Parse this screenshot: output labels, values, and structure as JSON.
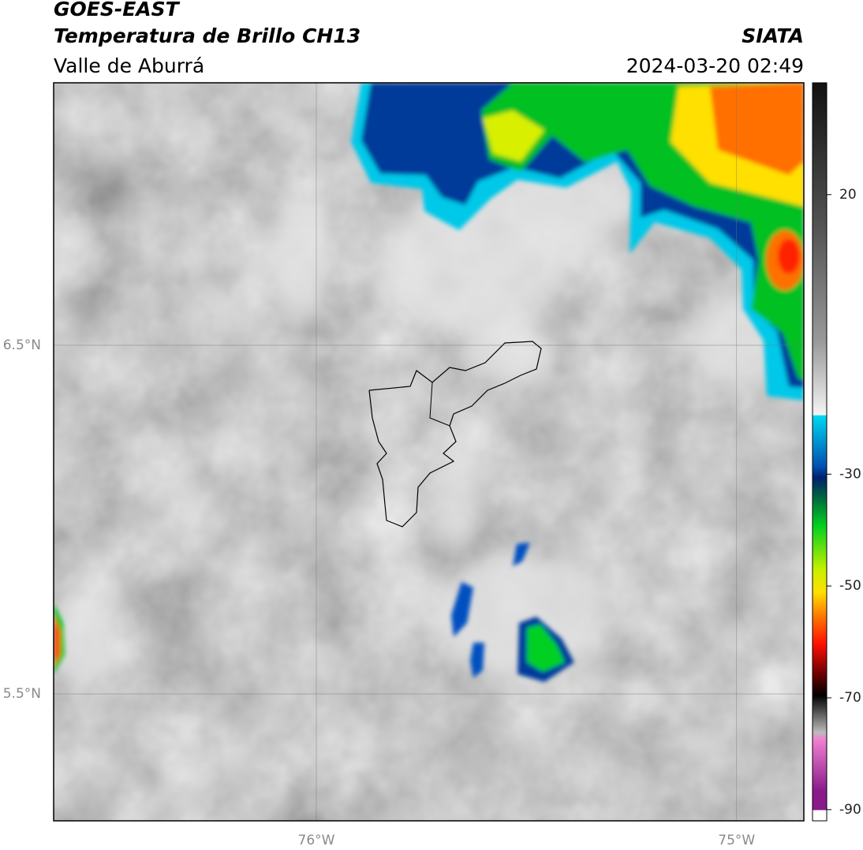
{
  "header": {
    "title": "GOES-EAST",
    "subtitle": "Temperatura de Brillo CH13",
    "region": "Valle de Aburrá",
    "source": "SIATA",
    "datetime": "2024-03-20 02:49"
  },
  "map": {
    "xlim": [
      -76.625,
      -74.84
    ],
    "ylim": [
      5.136,
      7.253
    ],
    "xticks": [
      {
        "value": -76,
        "label": "76°W"
      },
      {
        "value": -75,
        "label": "75°W"
      }
    ],
    "yticks": [
      {
        "value": 6.5,
        "label": "6.5°N"
      },
      {
        "value": 5.5,
        "label": "5.5°N"
      }
    ],
    "grid": true
  },
  "colorbar": {
    "lim": [
      -92,
      40
    ],
    "ticks": [
      20,
      -30,
      -50,
      -70,
      -90
    ]
  }
}
